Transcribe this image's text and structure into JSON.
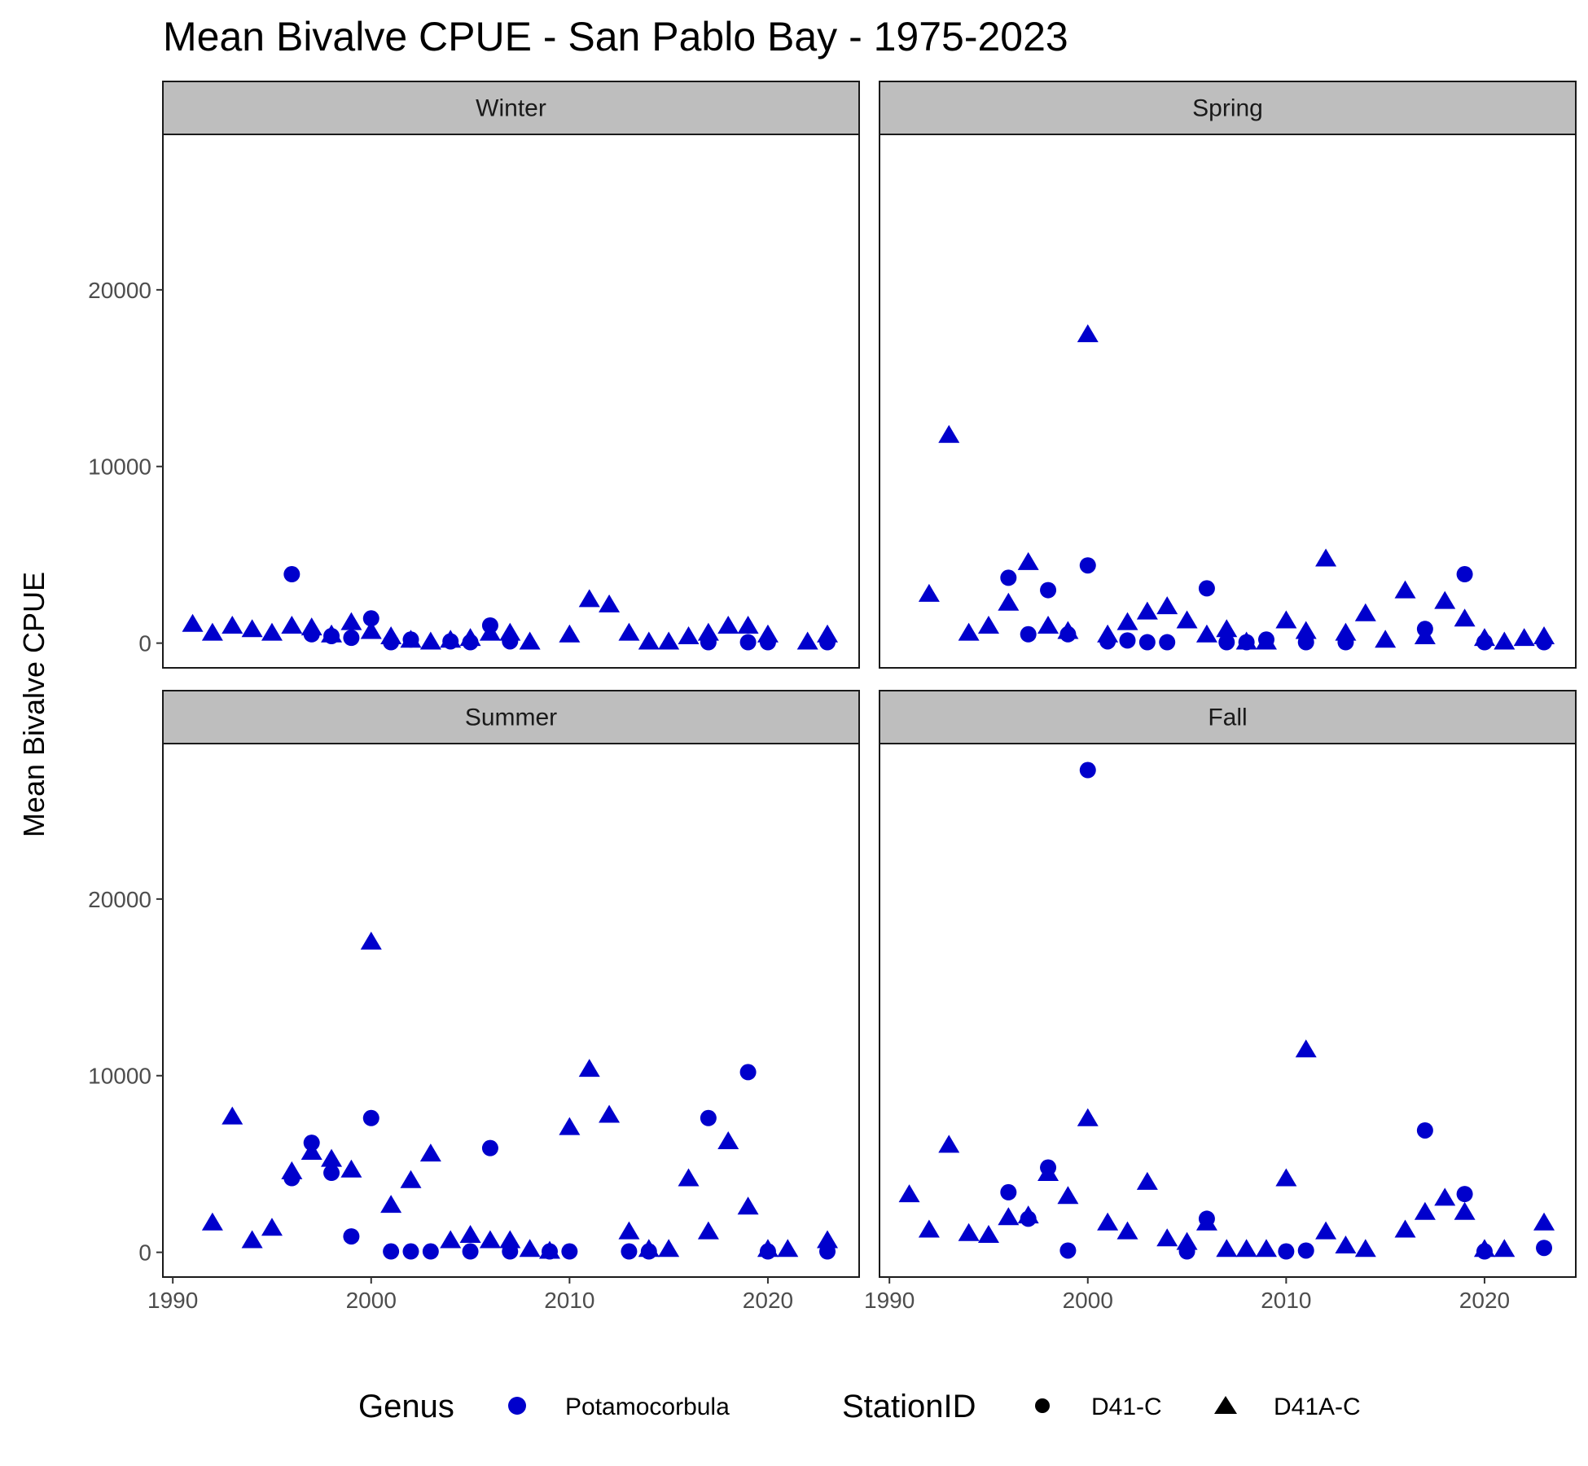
{
  "chart_data": {
    "type": "scatter",
    "title": "Mean Bivalve CPUE - San Pablo Bay - 1975-2023",
    "xlabel": "",
    "ylabel": "Mean Bivalve CPUE",
    "xlim": [
      1989.5,
      2024.6
    ],
    "ylim": [
      -1400,
      28800
    ],
    "x_ticks": [
      1990,
      2000,
      2010,
      2020
    ],
    "y_ticks": [
      0,
      10000,
      20000
    ],
    "grid": false,
    "color": "#0000cc",
    "legend": {
      "position": "bottom",
      "genus_title": "Genus",
      "genus_items": [
        "Potamocorbula"
      ],
      "station_title": "StationID",
      "station_items": [
        {
          "label": "D41-C",
          "shape": "circle"
        },
        {
          "label": "D41A-C",
          "shape": "triangle"
        }
      ]
    },
    "panels": [
      {
        "name": "Winter",
        "series": [
          {
            "name": "D41-C",
            "shape": "circle",
            "points": [
              [
                1996,
                3900
              ],
              [
                1997,
                500
              ],
              [
                1998,
                400
              ],
              [
                1999,
                300
              ],
              [
                2000,
                1400
              ],
              [
                2001,
                50
              ],
              [
                2002,
                200
              ],
              [
                2004,
                100
              ],
              [
                2005,
                50
              ],
              [
                2006,
                1000
              ],
              [
                2007,
                100
              ],
              [
                2017,
                50
              ],
              [
                2019,
                50
              ],
              [
                2020,
                50
              ],
              [
                2023,
                50
              ]
            ]
          },
          {
            "name": "D41A-C",
            "shape": "triangle",
            "points": [
              [
                1991,
                1100
              ],
              [
                1992,
                600
              ],
              [
                1993,
                1000
              ],
              [
                1994,
                800
              ],
              [
                1995,
                600
              ],
              [
                1996,
                1000
              ],
              [
                1997,
                900
              ],
              [
                1998,
                500
              ],
              [
                1999,
                1200
              ],
              [
                2000,
                700
              ],
              [
                2001,
                400
              ],
              [
                2002,
                200
              ],
              [
                2003,
                100
              ],
              [
                2004,
                200
              ],
              [
                2005,
                300
              ],
              [
                2006,
                600
              ],
              [
                2007,
                600
              ],
              [
                2008,
                100
              ],
              [
                2010,
                500
              ],
              [
                2011,
                2500
              ],
              [
                2012,
                2200
              ],
              [
                2013,
                600
              ],
              [
                2014,
                100
              ],
              [
                2015,
                100
              ],
              [
                2016,
                400
              ],
              [
                2017,
                600
              ],
              [
                2018,
                1000
              ],
              [
                2019,
                1000
              ],
              [
                2020,
                500
              ],
              [
                2022,
                100
              ],
              [
                2023,
                500
              ]
            ]
          }
        ]
      },
      {
        "name": "Spring",
        "series": [
          {
            "name": "D41-C",
            "shape": "circle",
            "points": [
              [
                1996,
                3700
              ],
              [
                1997,
                500
              ],
              [
                1998,
                3000
              ],
              [
                1999,
                500
              ],
              [
                2000,
                4400
              ],
              [
                2001,
                100
              ],
              [
                2002,
                150
              ],
              [
                2003,
                50
              ],
              [
                2004,
                50
              ],
              [
                2006,
                3100
              ],
              [
                2007,
                50
              ],
              [
                2008,
                50
              ],
              [
                2009,
                200
              ],
              [
                2011,
                50
              ],
              [
                2013,
                50
              ],
              [
                2017,
                800
              ],
              [
                2019,
                3900
              ],
              [
                2020,
                50
              ],
              [
                2023,
                50
              ]
            ]
          },
          {
            "name": "D41A-C",
            "shape": "triangle",
            "points": [
              [
                1992,
                2800
              ],
              [
                1993,
                11800
              ],
              [
                1994,
                600
              ],
              [
                1995,
                1000
              ],
              [
                1996,
                2300
              ],
              [
                1997,
                4600
              ],
              [
                1998,
                1000
              ],
              [
                1999,
                700
              ],
              [
                2000,
                17500
              ],
              [
                2001,
                500
              ],
              [
                2002,
                1200
              ],
              [
                2003,
                1800
              ],
              [
                2004,
                2100
              ],
              [
                2005,
                1300
              ],
              [
                2006,
                500
              ],
              [
                2007,
                800
              ],
              [
                2008,
                100
              ],
              [
                2009,
                100
              ],
              [
                2010,
                1300
              ],
              [
                2011,
                700
              ],
              [
                2012,
                4800
              ],
              [
                2013,
                600
              ],
              [
                2014,
                1700
              ],
              [
                2015,
                200
              ],
              [
                2016,
                3000
              ],
              [
                2017,
                400
              ],
              [
                2018,
                2400
              ],
              [
                2019,
                1400
              ],
              [
                2020,
                300
              ],
              [
                2021,
                100
              ],
              [
                2022,
                300
              ],
              [
                2023,
                400
              ]
            ]
          }
        ]
      },
      {
        "name": "Summer",
        "series": [
          {
            "name": "D41-C",
            "shape": "circle",
            "points": [
              [
                1996,
                4200
              ],
              [
                1997,
                6200
              ],
              [
                1998,
                4500
              ],
              [
                1999,
                900
              ],
              [
                2000,
                7600
              ],
              [
                2001,
                50
              ],
              [
                2002,
                50
              ],
              [
                2003,
                50
              ],
              [
                2005,
                50
              ],
              [
                2006,
                5900
              ],
              [
                2007,
                50
              ],
              [
                2009,
                50
              ],
              [
                2010,
                50
              ],
              [
                2013,
                50
              ],
              [
                2014,
                50
              ],
              [
                2017,
                7600
              ],
              [
                2019,
                10200
              ],
              [
                2020,
                50
              ],
              [
                2023,
                50
              ]
            ]
          },
          {
            "name": "D41A-C",
            "shape": "triangle",
            "points": [
              [
                1992,
                1700
              ],
              [
                1993,
                7700
              ],
              [
                1994,
                700
              ],
              [
                1995,
                1400
              ],
              [
                1996,
                4600
              ],
              [
                1997,
                5700
              ],
              [
                1998,
                5300
              ],
              [
                1999,
                4700
              ],
              [
                2000,
                17600
              ],
              [
                2001,
                2700
              ],
              [
                2002,
                4100
              ],
              [
                2003,
                5600
              ],
              [
                2004,
                700
              ],
              [
                2005,
                1000
              ],
              [
                2006,
                700
              ],
              [
                2007,
                700
              ],
              [
                2008,
                200
              ],
              [
                2009,
                100
              ],
              [
                2010,
                7100
              ],
              [
                2011,
                10400
              ],
              [
                2012,
                7800
              ],
              [
                2013,
                1200
              ],
              [
                2014,
                200
              ],
              [
                2015,
                200
              ],
              [
                2016,
                4200
              ],
              [
                2017,
                1200
              ],
              [
                2018,
                6300
              ],
              [
                2019,
                2600
              ],
              [
                2020,
                200
              ],
              [
                2021,
                200
              ],
              [
                2023,
                700
              ]
            ]
          }
        ]
      },
      {
        "name": "Fall",
        "series": [
          {
            "name": "D41-C",
            "shape": "circle",
            "points": [
              [
                1996,
                3400
              ],
              [
                1997,
                1900
              ],
              [
                1998,
                4800
              ],
              [
                1999,
                100
              ],
              [
                2000,
                27300
              ],
              [
                2005,
                50
              ],
              [
                2006,
                1900
              ],
              [
                2010,
                50
              ],
              [
                2011,
                100
              ],
              [
                2017,
                6900
              ],
              [
                2019,
                3300
              ],
              [
                2020,
                50
              ],
              [
                2023,
                250
              ]
            ]
          },
          {
            "name": "D41A-C",
            "shape": "triangle",
            "points": [
              [
                1991,
                3300
              ],
              [
                1992,
                1300
              ],
              [
                1993,
                6100
              ],
              [
                1994,
                1100
              ],
              [
                1995,
                1000
              ],
              [
                1996,
                2000
              ],
              [
                1997,
                2100
              ],
              [
                1998,
                4500
              ],
              [
                1999,
                3200
              ],
              [
                2000,
                7600
              ],
              [
                2001,
                1700
              ],
              [
                2002,
                1200
              ],
              [
                2003,
                4000
              ],
              [
                2004,
                800
              ],
              [
                2005,
                600
              ],
              [
                2006,
                1700
              ],
              [
                2007,
                200
              ],
              [
                2008,
                200
              ],
              [
                2009,
                200
              ],
              [
                2010,
                4200
              ],
              [
                2011,
                11500
              ],
              [
                2012,
                1200
              ],
              [
                2013,
                400
              ],
              [
                2014,
                200
              ],
              [
                2016,
                1300
              ],
              [
                2017,
                2300
              ],
              [
                2018,
                3100
              ],
              [
                2019,
                2300
              ],
              [
                2020,
                200
              ],
              [
                2021,
                200
              ],
              [
                2023,
                1700
              ]
            ]
          }
        ]
      }
    ]
  }
}
